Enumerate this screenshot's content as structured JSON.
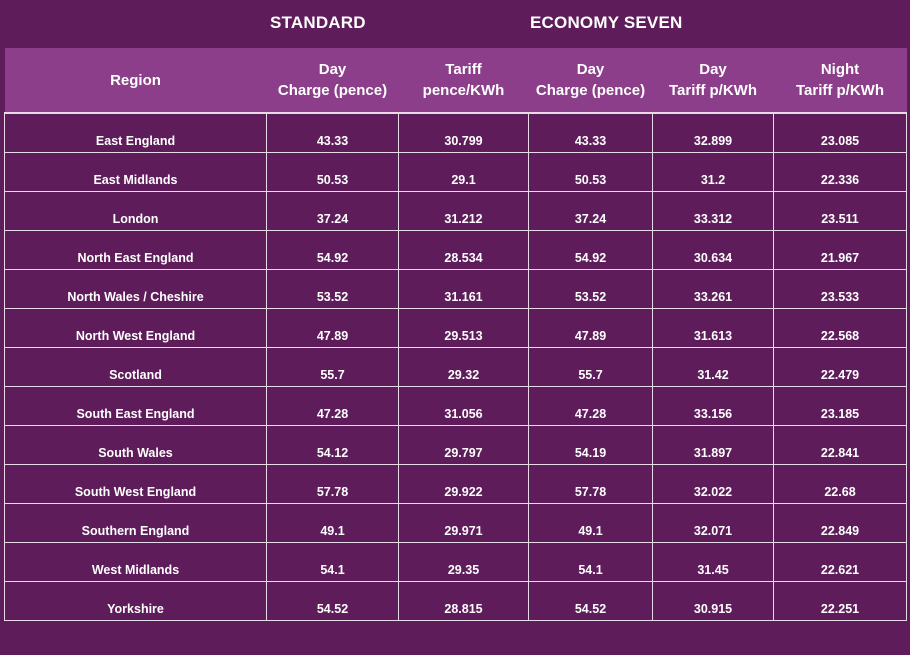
{
  "groups": {
    "standard": "STANDARD",
    "economy_seven": "ECONOMY SEVEN"
  },
  "headers": [
    {
      "line1": "Region",
      "line2": ""
    },
    {
      "line1": "Day",
      "line2": "Charge (pence)"
    },
    {
      "line1": "Tariff",
      "line2": "pence/KWh"
    },
    {
      "line1": "Day",
      "line2": "Charge (pence)"
    },
    {
      "line1": "Day",
      "line2": "Tariff p/KWh"
    },
    {
      "line1": "Night",
      "line2": "Tariff p/KWh"
    }
  ],
  "rows": [
    [
      "East England",
      "43.33",
      "30.799",
      "43.33",
      "32.899",
      "23.085"
    ],
    [
      "East Midlands",
      "50.53",
      "29.1",
      "50.53",
      "31.2",
      "22.336"
    ],
    [
      "London",
      "37.24",
      "31.212",
      "37.24",
      "33.312",
      "23.511"
    ],
    [
      "North East England",
      "54.92",
      "28.534",
      "54.92",
      "30.634",
      "21.967"
    ],
    [
      "North Wales / Cheshire",
      "53.52",
      "31.161",
      "53.52",
      "33.261",
      "23.533"
    ],
    [
      "North West England",
      "47.89",
      "29.513",
      "47.89",
      "31.613",
      "22.568"
    ],
    [
      "Scotland",
      "55.7",
      "29.32",
      "55.7",
      "31.42",
      "22.479"
    ],
    [
      "South East England",
      "47.28",
      "31.056",
      "47.28",
      "33.156",
      "23.185"
    ],
    [
      "South Wales",
      "54.12",
      "29.797",
      "54.19",
      "31.897",
      "22.841"
    ],
    [
      "South West England",
      "57.78",
      "29.922",
      "57.78",
      "32.022",
      "22.68"
    ],
    [
      "Southern England",
      "49.1",
      "29.971",
      "49.1",
      "32.071",
      "22.849"
    ],
    [
      "West Midlands",
      "54.1",
      "29.35",
      "54.1",
      "31.45",
      "22.621"
    ],
    [
      "Yorkshire",
      "54.52",
      "28.815",
      "54.52",
      "30.915",
      "22.251"
    ]
  ]
}
